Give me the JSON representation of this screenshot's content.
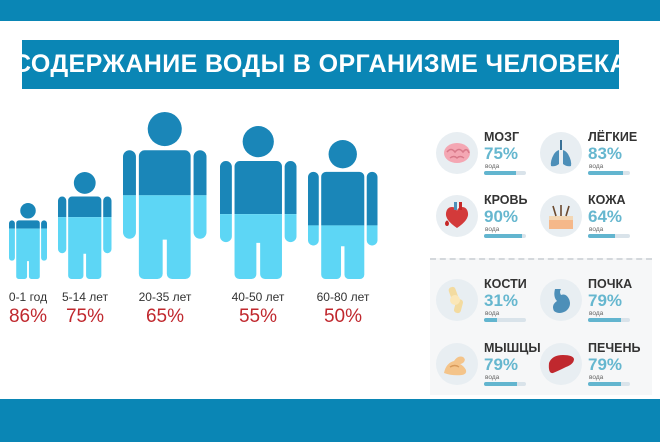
{
  "title": "СОДЕРЖАНИЕ ВОДЫ В ОРГАНИЗМЕ ЧЕЛОВЕКА",
  "colors": {
    "accent": "#0a86b5",
    "dark_fill": "#1a86b8",
    "light_fill": "#5dd6f5",
    "percent_red": "#c0282e",
    "organ_value": "#66b7cf"
  },
  "age_groups": [
    {
      "age": "0-1 год",
      "percent": "86%",
      "water_fraction": 0.86
    },
    {
      "age": "5-14 лет",
      "percent": "75%",
      "water_fraction": 0.75
    },
    {
      "age": "20-35 лет",
      "percent": "65%",
      "water_fraction": 0.65
    },
    {
      "age": "40-50 лет",
      "percent": "55%",
      "water_fraction": 0.55
    },
    {
      "age": "60-80 лет",
      "percent": "50%",
      "water_fraction": 0.5
    }
  ],
  "organs": [
    {
      "name": "МОЗГ",
      "value": "75%",
      "label": "вода",
      "fraction": 0.75,
      "icon": "brain-icon"
    },
    {
      "name": "ЛЁГКИЕ",
      "value": "83%",
      "label": "вода",
      "fraction": 0.83,
      "icon": "lungs-icon"
    },
    {
      "name": "КРОВЬ",
      "value": "90%",
      "label": "вода",
      "fraction": 0.9,
      "icon": "heart-blood-icon"
    },
    {
      "name": "КОЖА",
      "value": "64%",
      "label": "вода",
      "fraction": 0.64,
      "icon": "skin-hair-icon"
    },
    {
      "name": "КОСТИ",
      "value": "31%",
      "label": "вода",
      "fraction": 0.31,
      "icon": "bone-joint-icon"
    },
    {
      "name": "ПОЧКА",
      "value": "79%",
      "label": "вода",
      "fraction": 0.79,
      "icon": "kidney-stomach-icon"
    },
    {
      "name": "МЫШЦЫ",
      "value": "79%",
      "label": "вода",
      "fraction": 0.79,
      "icon": "muscle-arm-icon"
    },
    {
      "name": "ПЕЧЕНЬ",
      "value": "79%",
      "label": "вода",
      "fraction": 0.79,
      "icon": "liver-icon"
    }
  ]
}
